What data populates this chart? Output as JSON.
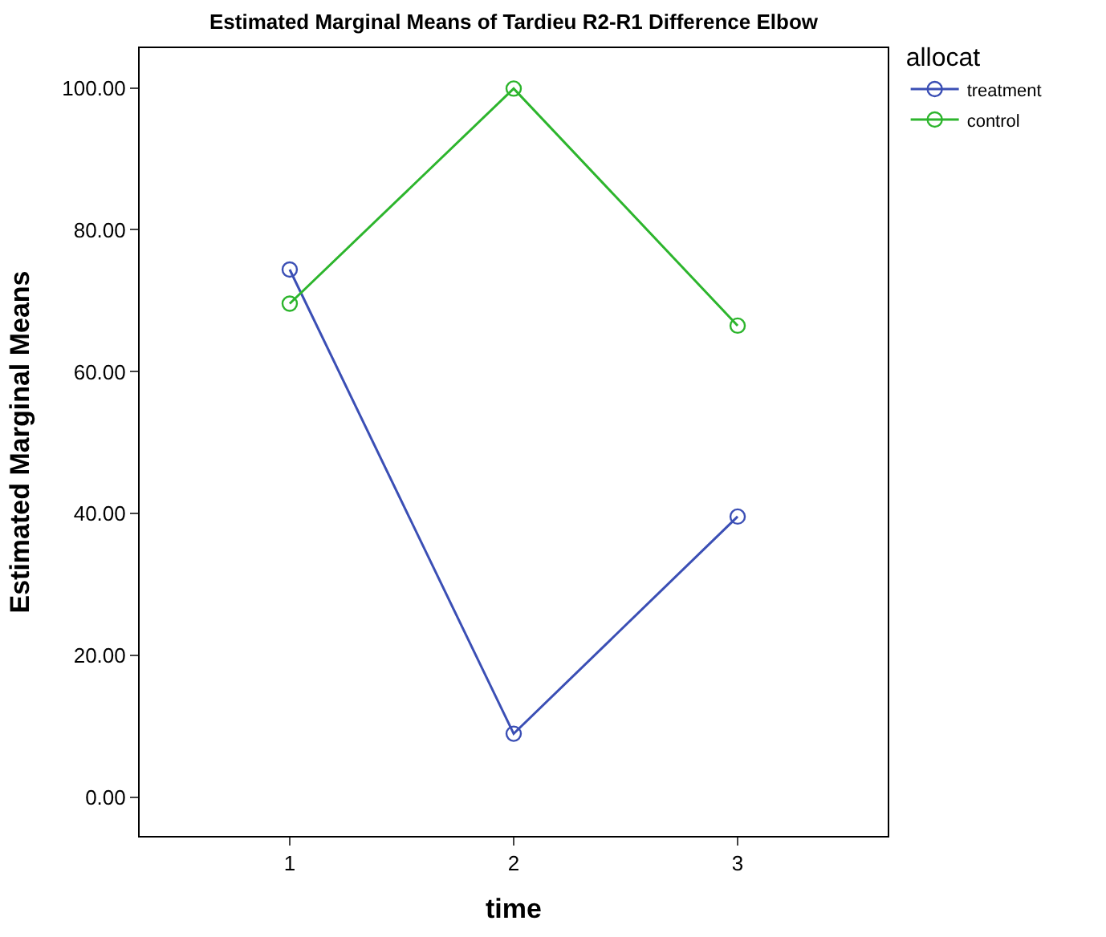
{
  "chart_data": {
    "type": "line",
    "title": "Estimated Marginal Means of Tardieu R2-R1 Difference Elbow",
    "xlabel": "time",
    "ylabel": "Estimated Marginal Means",
    "legend_title": "allocat",
    "categories": [
      "1",
      "2",
      "3"
    ],
    "series": [
      {
        "name": "treatment",
        "color": "#3b4fb5",
        "values": [
          74.4,
          9.0,
          39.6
        ]
      },
      {
        "name": "control",
        "color": "#2db52d",
        "values": [
          69.6,
          99.9,
          66.5
        ]
      }
    ],
    "ylim": [
      -5.4,
      105.6
    ],
    "yticks": [
      {
        "value": 0,
        "label": "0.00"
      },
      {
        "value": 20,
        "label": "20.00"
      },
      {
        "value": 40,
        "label": "40.00"
      },
      {
        "value": 60,
        "label": "60.00"
      },
      {
        "value": 80,
        "label": "80.00"
      },
      {
        "value": 100,
        "label": "100.00"
      }
    ],
    "legend": "top right",
    "marker": "circle",
    "line_style": "solid"
  }
}
